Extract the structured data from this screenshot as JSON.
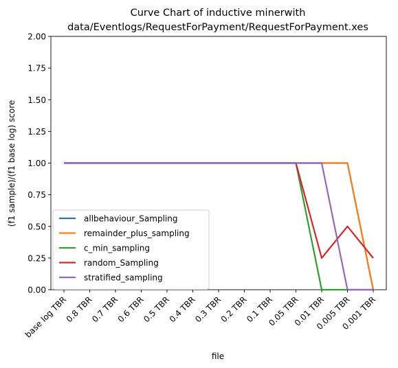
{
  "chart_data": {
    "type": "line",
    "title_line1": "Curve Chart of inductive minerwith",
    "title_line2": "data/Eventlogs/RequestForPayment/RequestForPayment.xes",
    "xlabel": "file",
    "ylabel": "(f1 sample)/(f1 base log) score",
    "categories": [
      "base log TBR",
      "0.8 TBR",
      "0.7 TBR",
      "0.6 TBR",
      "0.5 TBR",
      "0.4 TBR",
      "0.3 TBR",
      "0.2 TBR",
      "0.1 TBR",
      "0.05 TBR",
      "0.01 TBR",
      "0.005 TBR",
      "0.001 TBR"
    ],
    "ylim": [
      0,
      2
    ],
    "yticks": [
      "0.00",
      "0.25",
      "0.50",
      "0.75",
      "1.00",
      "1.25",
      "1.50",
      "1.75",
      "2.00"
    ],
    "legend_position": "lower-left",
    "grid": false,
    "series": [
      {
        "name": "allbehaviour_Sampling",
        "color": "#1f77b4",
        "values": [
          1,
          1,
          1,
          1,
          1,
          1,
          1,
          1,
          1,
          1,
          1,
          1,
          0
        ]
      },
      {
        "name": "remainder_plus_sampling",
        "color": "#ff7f0e",
        "values": [
          1,
          1,
          1,
          1,
          1,
          1,
          1,
          1,
          1,
          1,
          1,
          1,
          0
        ]
      },
      {
        "name": "c_min_sampling",
        "color": "#2ca02c",
        "values": [
          1,
          1,
          1,
          1,
          1,
          1,
          1,
          1,
          1,
          1,
          0,
          0,
          0
        ]
      },
      {
        "name": "random_Sampling",
        "color": "#d62728",
        "values": [
          1,
          1,
          1,
          1,
          1,
          1,
          1,
          1,
          1,
          1,
          0.25,
          0.5,
          0.25
        ]
      },
      {
        "name": "stratified_sampling",
        "color": "#9467bd",
        "values": [
          1,
          1,
          1,
          1,
          1,
          1,
          1,
          1,
          1,
          1,
          1,
          0,
          0
        ]
      }
    ]
  }
}
